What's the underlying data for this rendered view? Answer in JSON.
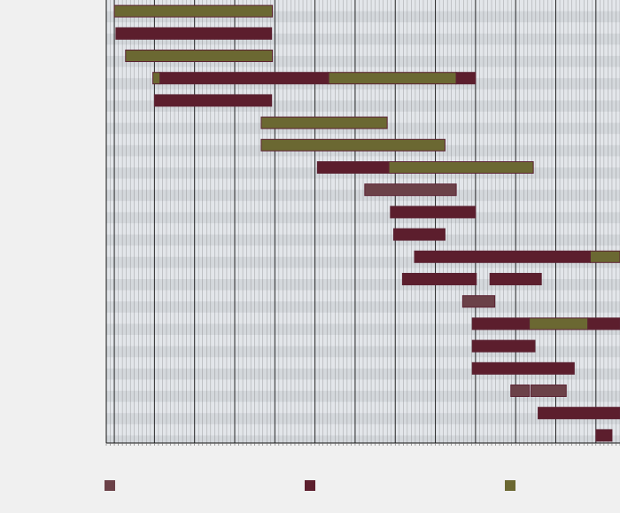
{
  "chart_data": {
    "type": "gantt",
    "title": "",
    "xlabel": "",
    "ylabel": "",
    "x_range": [
      -0.1,
      6.3
    ],
    "grid": true,
    "legend_placement": "bottom",
    "colors": {
      "background": "#f0f0f0",
      "plot_stripe_a": "#e3e6ea",
      "plot_stripe_b": "#d4d8dc",
      "grid_major": "#111111",
      "grid_minor": "#666666",
      "bar_outline": "#5b2232"
    },
    "series": [
      {
        "name": "",
        "color": "#6b4148"
      },
      {
        "name": "",
        "color": "#5c1e2d"
      },
      {
        "name": "",
        "color": "#6b6832"
      }
    ],
    "tasks": [
      {
        "segments": [
          {
            "start": 0.0,
            "end": 1.97,
            "series": 2
          }
        ]
      },
      {
        "segments": [
          {
            "start": 0.02,
            "end": 1.96,
            "series": 1
          }
        ]
      },
      {
        "segments": [
          {
            "start": 0.14,
            "end": 1.97,
            "series": 2
          }
        ]
      },
      {
        "segments": [
          {
            "start": 0.48,
            "end": 0.57,
            "series": 2
          },
          {
            "start": 0.57,
            "end": 2.67,
            "series": 1
          },
          {
            "start": 2.67,
            "end": 4.26,
            "series": 2
          },
          {
            "start": 4.26,
            "end": 4.5,
            "series": 1
          }
        ]
      },
      {
        "segments": [
          {
            "start": 0.5,
            "end": 1.96,
            "series": 1
          }
        ]
      },
      {
        "segments": [
          {
            "start": 1.83,
            "end": 3.4,
            "series": 2
          }
        ]
      },
      {
        "segments": [
          {
            "start": 1.83,
            "end": 4.12,
            "series": 2
          }
        ]
      },
      {
        "segments": [
          {
            "start": 2.53,
            "end": 3.42,
            "series": 1
          },
          {
            "start": 3.42,
            "end": 5.22,
            "series": 2
          }
        ]
      },
      {
        "segments": [
          {
            "start": 3.12,
            "end": 4.26,
            "series": 0
          }
        ]
      },
      {
        "segments": [
          {
            "start": 3.44,
            "end": 4.5,
            "series": 1
          }
        ]
      },
      {
        "segments": [
          {
            "start": 3.48,
            "end": 4.12,
            "series": 1
          }
        ]
      },
      {
        "segments": [
          {
            "start": 3.74,
            "end": 5.93,
            "series": 1
          },
          {
            "start": 5.93,
            "end": 6.3,
            "series": 2
          }
        ]
      },
      {
        "segments": [
          {
            "start": 3.59,
            "end": 4.51,
            "series": 1
          },
          {
            "start": 4.68,
            "end": 5.32,
            "series": 1
          }
        ]
      },
      {
        "segments": [
          {
            "start": 4.34,
            "end": 4.74,
            "series": 0
          }
        ]
      },
      {
        "segments": [
          {
            "start": 4.46,
            "end": 5.17,
            "series": 1
          },
          {
            "start": 5.17,
            "end": 5.9,
            "series": 2
          },
          {
            "start": 5.9,
            "end": 6.3,
            "series": 1
          }
        ]
      },
      {
        "segments": [
          {
            "start": 4.46,
            "end": 5.24,
            "series": 1
          }
        ]
      },
      {
        "segments": [
          {
            "start": 4.46,
            "end": 5.73,
            "series": 1
          }
        ]
      },
      {
        "segments": [
          {
            "start": 4.94,
            "end": 5.17,
            "series": 0
          },
          {
            "start": 5.19,
            "end": 5.63,
            "series": 0
          }
        ]
      },
      {
        "segments": [
          {
            "start": 5.28,
            "end": 6.3,
            "series": 1
          }
        ]
      },
      {
        "segments": [
          {
            "start": 6.0,
            "end": 6.2,
            "series": 1
          }
        ]
      }
    ]
  }
}
